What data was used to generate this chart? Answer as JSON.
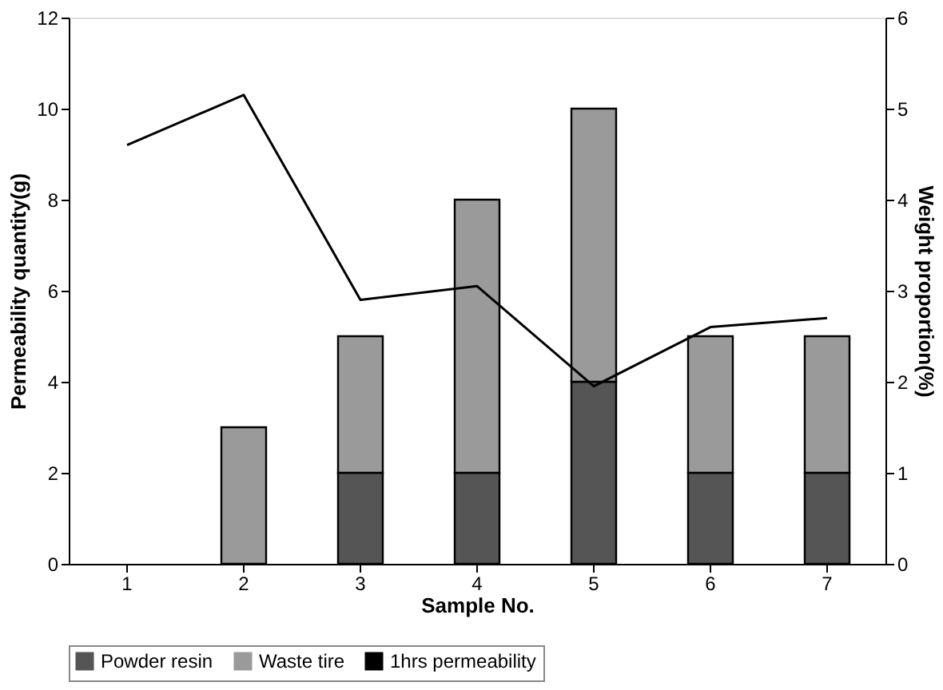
{
  "chart_data": {
    "type": "bar",
    "stacked": true,
    "xlabel": "Sample No.",
    "ylabel": "Permeability quantity(g)",
    "y2label": "Weight proportion(%)",
    "categories": [
      "1",
      "2",
      "3",
      "4",
      "5",
      "6",
      "7"
    ],
    "series": [
      {
        "name": "Powder resin",
        "color": "#555555",
        "axis": "y2",
        "values": [
          null,
          null,
          1,
          1,
          2,
          1,
          1
        ]
      },
      {
        "name": "Waste tire",
        "color": "#9a9a9a",
        "axis": "y2",
        "values": [
          null,
          1.5,
          1.5,
          3,
          3,
          1.5,
          1.5
        ]
      },
      {
        "name": "1hrs permeability",
        "type": "line",
        "color": "#000000",
        "axis": "y",
        "values": [
          9.2,
          10.3,
          5.8,
          6.1,
          3.9,
          5.2,
          5.4
        ]
      }
    ],
    "ylim": [
      0,
      12
    ],
    "yticks": [
      0,
      2,
      4,
      6,
      8,
      10,
      12
    ],
    "y2lim": [
      0,
      6
    ],
    "y2ticks": [
      0,
      1,
      2,
      3,
      4,
      5,
      6
    ],
    "grid": false,
    "legend": "bottom"
  }
}
